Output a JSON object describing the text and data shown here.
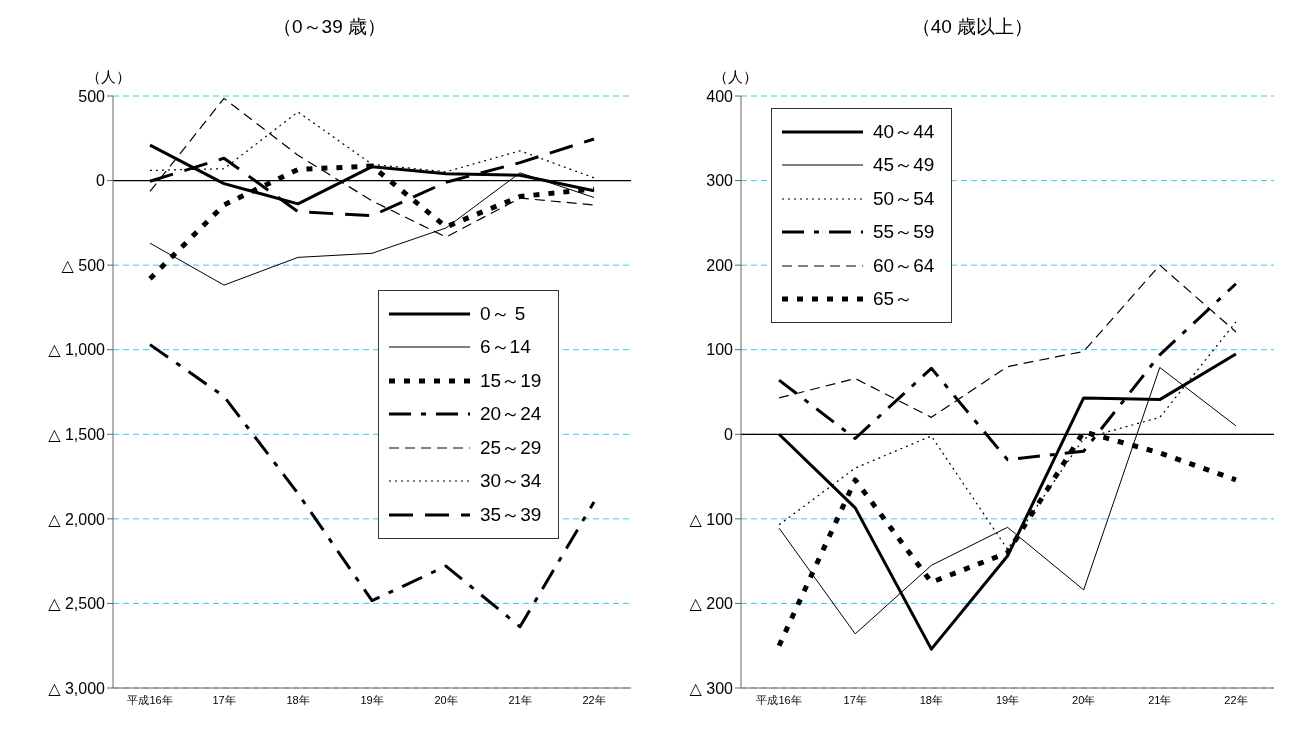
{
  "chart_data": [
    {
      "type": "line",
      "title": "（0～39 歳）",
      "ylabel": "（人）",
      "categories": [
        "平成16年",
        "17年",
        "18年",
        "19年",
        "20年",
        "21年",
        "22年"
      ],
      "ylim": [
        -3000,
        500
      ],
      "yticks": [
        500,
        0,
        {
          "value": -500,
          "label": "△ 500"
        },
        {
          "value": -1000,
          "label": "△ 1,000"
        },
        {
          "value": -1500,
          "label": "△ 1,500"
        },
        {
          "value": -2000,
          "label": "△ 2,000"
        },
        {
          "value": -2500,
          "label": "△ 2,500"
        },
        {
          "value": -3000,
          "label": "△ 3,000"
        }
      ],
      "grid": "y",
      "legend": "right",
      "ref_lines": [
        {
          "axis": "y",
          "value": 0,
          "color": "#000000"
        }
      ],
      "series": [
        {
          "name": "0～ 5",
          "color": "#000000",
          "line_style": "solid",
          "values": [
            210,
            -18,
            -138,
            82,
            40,
            32,
            -60
          ]
        },
        {
          "name": "6～14",
          "color": "#000000",
          "line_style": "solid",
          "values": [
            -370,
            -618,
            -454,
            -430,
            -280,
            46,
            -100
          ]
        },
        {
          "name": "15～19",
          "color": "#000000",
          "line_style": "dotted",
          "values": [
            -580,
            -144,
            66,
            86,
            -274,
            -94,
            -50
          ]
        },
        {
          "name": "20～24",
          "color": "#000000",
          "line_style": "dashed",
          "values": [
            -970,
            -1276,
            -1850,
            -2484,
            -2279,
            -2638,
            -1900
          ]
        },
        {
          "name": "25～29",
          "color": "#000000",
          "line_style": "dashed",
          "values": [
            -64,
            486,
            150,
            -120,
            -334,
            -104,
            -144
          ]
        },
        {
          "name": "30～34",
          "color": "#000000",
          "line_style": "dotted",
          "values": [
            60,
            70,
            406,
            96,
            52,
            176,
            16
          ]
        },
        {
          "name": "35～39",
          "color": "#000000",
          "line_style": "dashed",
          "values": [
            -4,
            132,
            -184,
            -208,
            -10,
            106,
            246
          ]
        }
      ]
    },
    {
      "type": "line",
      "title": "（40 歳以上）",
      "ylabel": "（人）",
      "categories": [
        "平成16年",
        "17年",
        "18年",
        "19年",
        "20年",
        "21年",
        "22年"
      ],
      "ylim": [
        -300,
        400
      ],
      "yticks": [
        400,
        300,
        200,
        100,
        0,
        {
          "value": -100,
          "label": "△ 100"
        },
        {
          "value": -200,
          "label": "△ 200"
        },
        {
          "value": -300,
          "label": "△ 300"
        }
      ],
      "grid": "y",
      "legend": "top left",
      "ref_lines": [
        {
          "axis": "y",
          "value": 0,
          "color": "#000000"
        }
      ],
      "series": [
        {
          "name": "40～44",
          "color": "#000000",
          "line_style": "solid",
          "values": [
            0,
            -87,
            -254,
            -144,
            43,
            41,
            95
          ]
        },
        {
          "name": "45～49",
          "color": "#000000",
          "line_style": "solid",
          "values": [
            -111,
            -236,
            -155,
            -110,
            -184,
            79,
            10
          ]
        },
        {
          "name": "50～54",
          "color": "#000000",
          "line_style": "dotted",
          "values": [
            -107,
            -40,
            -2,
            -136,
            -5,
            20,
            133
          ]
        },
        {
          "name": "55～59",
          "color": "#000000",
          "line_style": "dashed",
          "values": [
            64,
            -5,
            78,
            -30,
            -20,
            94,
            178
          ]
        },
        {
          "name": "60～64",
          "color": "#000000",
          "line_style": "dashed",
          "values": [
            43,
            66,
            20,
            80,
            98,
            200,
            121
          ]
        },
        {
          "name": "65～",
          "color": "#000000",
          "line_style": "dotted",
          "values": [
            -250,
            -54,
            -175,
            -140,
            3,
            -22,
            -54
          ]
        }
      ]
    }
  ]
}
